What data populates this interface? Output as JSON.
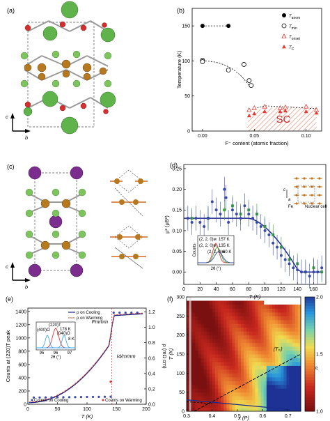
{
  "panels": {
    "a": {
      "label": "(a)",
      "axis_c": "c",
      "axis_b": "b"
    },
    "b": {
      "label": "(b)",
      "chart_data": {
        "type": "scatter",
        "xlabel": "F⁻ content (atomic fraction)",
        "ylabel": "Temperature (K)",
        "xlim": [
          -0.01,
          0.115
        ],
        "ylim": [
          0,
          175
        ],
        "xticks": [
          "0.00",
          "0.05",
          "0.10"
        ],
        "yticks": [
          "0",
          "50",
          "100",
          "150"
        ],
        "annotation": "SC",
        "legend": [
          "T_anom",
          "T_min",
          "T_onset",
          "T_C"
        ],
        "legend_sub": [
          "anom",
          "min",
          "onset",
          "C"
        ],
        "series": [
          {
            "name": "T_anom",
            "x": [
              0.0,
              0.025
            ],
            "y": [
              150,
              150
            ]
          },
          {
            "name": "T_min",
            "x": [
              0.0,
              0.0,
              0.025,
              0.04,
              0.045,
              0.047
            ],
            "y": [
              101,
              99,
              87,
              95,
              72,
              65
            ]
          },
          {
            "name": "T_onset",
            "x": [
              0.045,
              0.05,
              0.06,
              0.075,
              0.08,
              0.1,
              0.11
            ],
            "y": [
              30,
              33,
              35,
              33,
              34,
              35,
              30
            ]
          },
          {
            "name": "T_C",
            "x": [
              0.045,
              0.05,
              0.06,
              0.075,
              0.08,
              0.1,
              0.11
            ],
            "y": [
              22,
              25,
              28,
              28,
              29,
              28,
              26
            ]
          }
        ]
      }
    },
    "c": {
      "label": "(c)",
      "axis_c": "c",
      "axis_b": "b"
    },
    "d": {
      "label": "(d)",
      "chart_data": {
        "type": "scatter",
        "xlabel": "T (K)",
        "ylabel": "μ² (μB²)",
        "xlim": [
          0,
          175
        ],
        "ylim": [
          -0.03,
          0.26
        ],
        "xticks": [
          "0",
          "20",
          "40",
          "60",
          "80",
          "100",
          "120",
          "140",
          "160"
        ],
        "yticks": [
          "0.00",
          "0.05",
          "0.10",
          "0.15",
          "0.20",
          "0.25"
        ],
        "inset_xlabel": "2θ (°)",
        "inset_ylabel": "Counts",
        "inset_labels": [
          "(2, 2, 0)ᴍ",
          "157 K",
          "(2, 2, 0)ᴍ",
          "135 K",
          "(2, 2, 0)ᴍ",
          "60 K"
        ],
        "side_labels": [
          "c",
          "a",
          "Fe",
          "Nuclear cell"
        ],
        "series": [
          {
            "name": "blue",
            "x": [
              5,
              10,
              15,
              20,
              25,
              30,
              35,
              40,
              45,
              50,
              52,
              55,
              60,
              65,
              70,
              75,
              80,
              85,
              90,
              95,
              100,
              105,
              110,
              115,
              120,
              125,
              130,
              135,
              140,
              145,
              150,
              155,
              160,
              165,
              170
            ],
            "y": [
              0.13,
              0.12,
              0.13,
              0.12,
              0.11,
              0.13,
              0.17,
              0.15,
              0.14,
              0.2,
              0.18,
              0.12,
              0.15,
              0.14,
              0.13,
              0.16,
              0.14,
              0.13,
              0.12,
              0.11,
              0.1,
              0.09,
              0.07,
              0.06,
              0.04,
              0.03,
              0.02,
              0.01,
              0.005,
              0.0,
              0.0,
              -0.01,
              0.0,
              0.0,
              0.01
            ]
          },
          {
            "name": "green",
            "x": [
              10,
              30,
              50,
              60,
              70,
              80,
              90,
              100,
              110,
              120,
              130,
              140,
              150,
              160,
              170
            ],
            "y": [
              0.13,
              0.13,
              0.15,
              0.16,
              0.14,
              0.15,
              0.14,
              0.11,
              0.09,
              0.06,
              0.03,
              0.02,
              0.0,
              0.01,
              0.0
            ]
          }
        ]
      }
    },
    "e": {
      "label": "(e)",
      "chart_data": {
        "type": "line",
        "xlabel": "T (K)",
        "ylabel_left": "Counts at (220)T peak",
        "ylabel_right": "ρ (mΩ cm)",
        "xlim": [
          0,
          200
        ],
        "ylim_left": [
          0,
          1450
        ],
        "ylim_right": [
          0,
          1.25
        ],
        "xticks": [
          "0",
          "50",
          "100",
          "150",
          "200"
        ],
        "yticks_left": [
          "0",
          "200",
          "400",
          "600",
          "800",
          "1000",
          "1200",
          "1400"
        ],
        "yticks_right": [
          "0.0",
          "0.2",
          "0.4",
          "0.6",
          "0.8",
          "1.0",
          "1.2"
        ],
        "legend": [
          "ρ on Cooling",
          "ρ on Warming"
        ],
        "legend_counts": [
          "Counts on Cooling",
          "Counts on Warming"
        ],
        "phase_labels": [
          "Fmmm",
          "I4/mmm"
        ],
        "inset_labels": [
          "(220)T",
          "178 K",
          "(400)O",
          "(040)O",
          "8 K"
        ],
        "inset_xticks": [
          "95",
          "96",
          "97"
        ],
        "inset_xlabel": "2θ (°)"
      }
    },
    "f": {
      "label": "(f)",
      "chart_data": {
        "type": "heatmap",
        "xlabel": "x (P)",
        "ylabel": "T (K)",
        "xlim": [
          0.3,
          0.75
        ],
        "ylim": [
          0,
          300
        ],
        "xticks": [
          "0.3",
          "0.4",
          "0.5",
          "0.6",
          "0.7"
        ],
        "yticks": [
          "0",
          "50",
          "100",
          "150",
          "200",
          "250",
          "300"
        ],
        "colorbar_label": "n",
        "colorbar_ticks": [
          "1.0",
          "1.5",
          "2.0"
        ],
        "annotation": "⟨Tₙ⟩"
      }
    }
  }
}
